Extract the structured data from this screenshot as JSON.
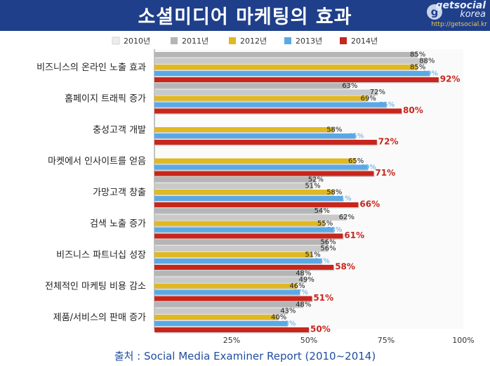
{
  "header": {
    "title": "소셜미디어 마케팅의 효과",
    "logo_brand_line1": "getsocial",
    "logo_brand_line2": "korea",
    "logo_url": "http://getsocial.kr"
  },
  "source": "출처 : Social Media Examiner Report (2010~2014)",
  "chart_data": {
    "type": "bar",
    "orientation": "horizontal",
    "title": "",
    "xlabel": "",
    "ylabel": "",
    "xlim": [
      0,
      100
    ],
    "x_ticks": [
      "25%",
      "50%",
      "75%",
      "100%"
    ],
    "grid": false,
    "legend_position": "top",
    "categories": [
      "비즈니스의 온라인 노출 효과",
      "홈페이지 트래픽 증가",
      "충성고객 개발",
      "마켓에서 인사이트를 얻음",
      "가망고객 창출",
      "검색 노출 증가",
      "비즈니스 파트너십 성장",
      "전체적인 마케팅 비용 감소",
      "제품/서비스의 판매 증가"
    ],
    "series": [
      {
        "name": "2010년",
        "color": "#ececec",
        "values": [
          null,
          null,
          null,
          null,
          null,
          null,
          null,
          null,
          null
        ],
        "labels": [
          "",
          "",
          "",
          "",
          "",
          "",
          "",
          "",
          ""
        ]
      },
      {
        "name": "2011년",
        "color": "#b5b5b5",
        "values": [
          85,
          63,
          null,
          null,
          52,
          54,
          56,
          48,
          48
        ],
        "labels": [
          "85%",
          "63%",
          "",
          "",
          "52%",
          "54%",
          "56%",
          "48%",
          "48%"
        ]
      },
      {
        "name": "2012년",
        "color": "#c9c9c9",
        "values": [
          88,
          72,
          null,
          null,
          51,
          62,
          56,
          49,
          43
        ],
        "labels": [
          "88%",
          "72%",
          "",
          "",
          "51%",
          "62%",
          "56%",
          "49%",
          "43%"
        ]
      },
      {
        "name": "2012년b",
        "color": "#e0b820",
        "values": [
          85,
          69,
          58,
          65,
          58,
          55,
          51,
          46,
          40
        ],
        "labels": [
          "85%",
          "69%",
          "58%",
          "65%",
          "58%",
          "55%",
          "51%",
          "46%",
          "40%"
        ]
      },
      {
        "name": "2013년",
        "color": "#5aa9e6",
        "values": [
          89,
          75,
          65,
          69,
          61,
          58,
          54,
          47,
          43
        ],
        "labels": [
          "89%",
          "75%",
          "65%",
          "69%",
          "61%",
          "58%",
          "54%",
          "47%",
          "43%"
        ]
      },
      {
        "name": "2014년",
        "color": "#c8261c",
        "values": [
          92,
          80,
          72,
          71,
          66,
          61,
          58,
          51,
          50
        ],
        "labels": [
          "92%",
          "80%",
          "72%",
          "71%",
          "66%",
          "61%",
          "58%",
          "51%",
          "50%"
        ]
      }
    ],
    "legend": [
      {
        "name": "2010년",
        "color": "#ececec"
      },
      {
        "name": "2011년",
        "color": "#b5b5b5"
      },
      {
        "name": "2012년",
        "color": "#e0b820"
      },
      {
        "name": "2013년",
        "color": "#5aa9e6"
      },
      {
        "name": "2014년",
        "color": "#c8261c"
      }
    ]
  }
}
